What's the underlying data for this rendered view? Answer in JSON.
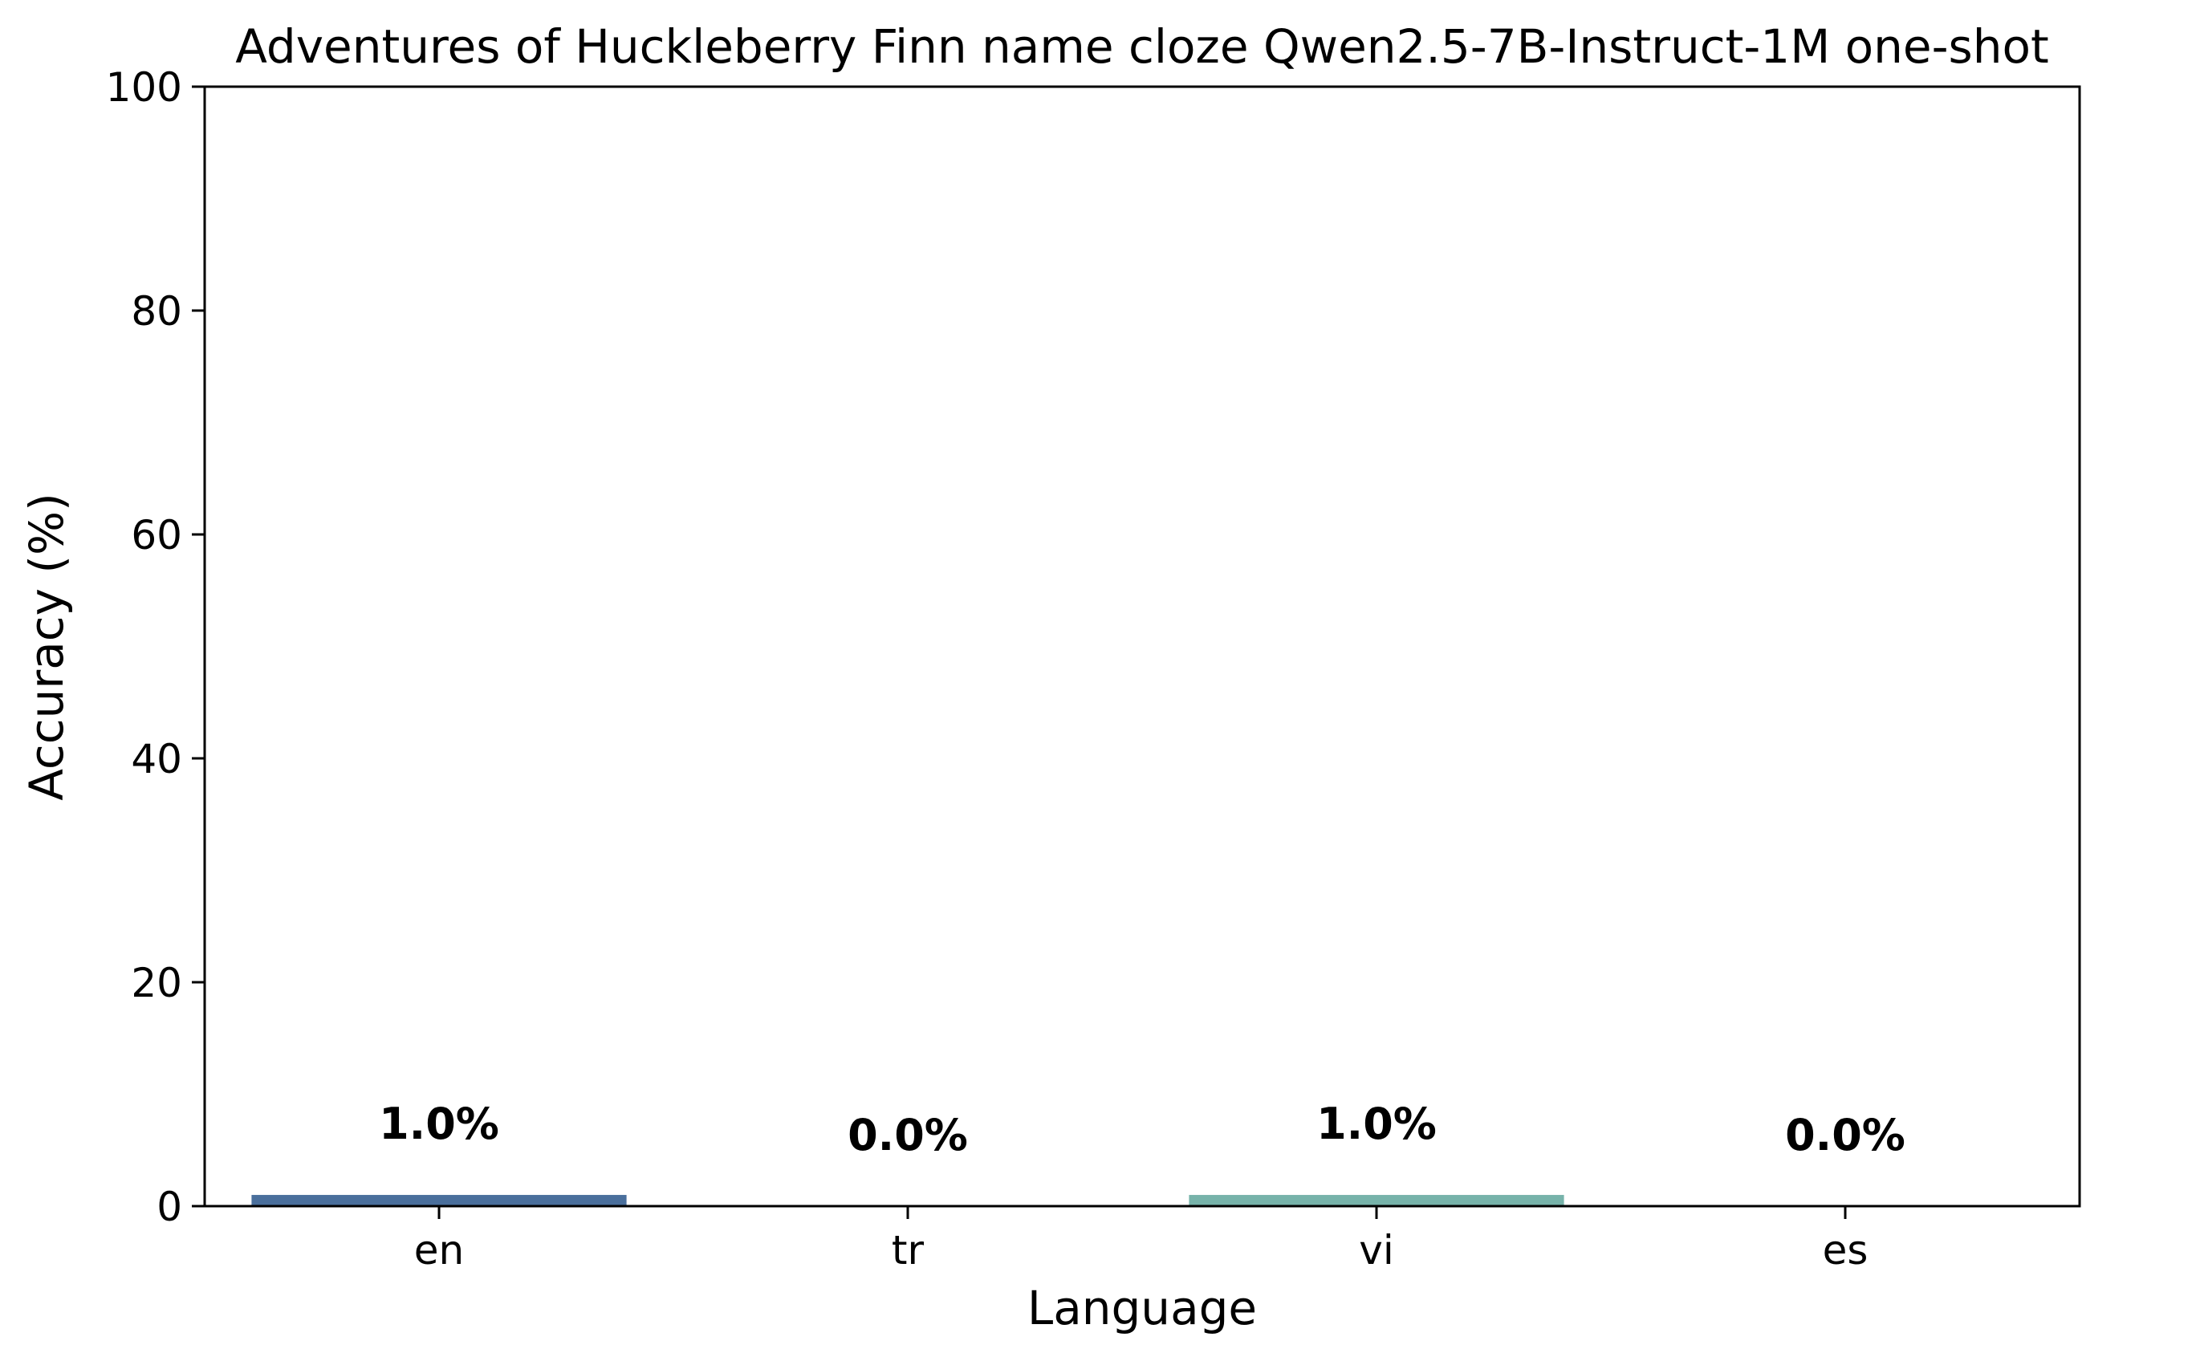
{
  "chart_data": {
    "type": "bar",
    "title": "Adventures of Huckleberry Finn name cloze Qwen2.5-7B-Instruct-1M one-shot",
    "xlabel": "Language",
    "ylabel": "Accuracy (%)",
    "categories": [
      "en",
      "tr",
      "vi",
      "es"
    ],
    "values": [
      1.0,
      0.0,
      1.0,
      0.0
    ],
    "data_labels": [
      "1.0%",
      "0.0%",
      "1.0%",
      "0.0%"
    ],
    "colors": [
      "#4a6f9c",
      "#5a8fa0",
      "#77b3aa",
      "#9bd0a8"
    ],
    "ylim": [
      0,
      100
    ],
    "yticks": [
      0,
      20,
      40,
      60,
      80,
      100
    ],
    "ytick_labels": [
      "0",
      "20",
      "40",
      "60",
      "80",
      "100"
    ],
    "grid": false,
    "legend": "none"
  }
}
